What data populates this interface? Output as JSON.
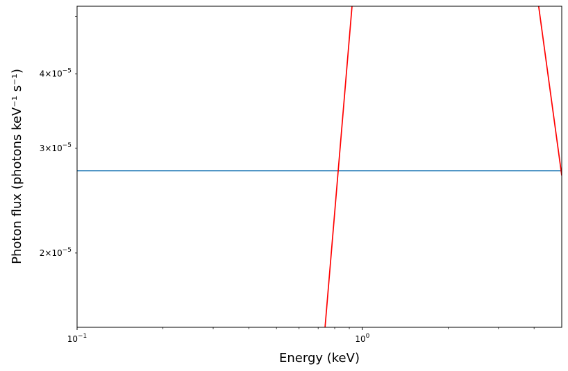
{
  "chart_data": {
    "type": "line",
    "xlabel": "Energy (keV)",
    "ylabel": "Photon flux (photons keV⁻¹ s⁻¹)",
    "xscale": "log",
    "yscale": "log",
    "xlim": [
      0.1,
      5.0
    ],
    "ylim": [
      1.5e-05,
      5.2e-05
    ],
    "grid": false,
    "legend": "none",
    "x_tick_labels": [
      {
        "value": 0.1,
        "base": "10",
        "exp": "−1"
      },
      {
        "value": 1.0,
        "base": "10",
        "exp": "0"
      }
    ],
    "y_tick_labels": [
      {
        "value": 2e-05,
        "mantissa": "2",
        "base": "×10",
        "exp": "−5"
      },
      {
        "value": 3e-05,
        "mantissa": "3",
        "base": "×10",
        "exp": "−5"
      },
      {
        "value": 4e-05,
        "mantissa": "4",
        "base": "×10",
        "exp": "−5"
      }
    ],
    "series": [
      {
        "color": "#1f77b4",
        "x": [
          0.1,
          5.0
        ],
        "y": [
          2.75e-05,
          2.75e-05
        ]
      },
      {
        "color": "#ff0000",
        "x": [
          0.74,
          0.92
        ],
        "y": [
          1.5e-05,
          5.2e-05
        ]
      },
      {
        "color": "#ff0000",
        "x": [
          4.15,
          5.0
        ],
        "y": [
          5.2e-05,
          2.7e-05
        ]
      }
    ]
  }
}
